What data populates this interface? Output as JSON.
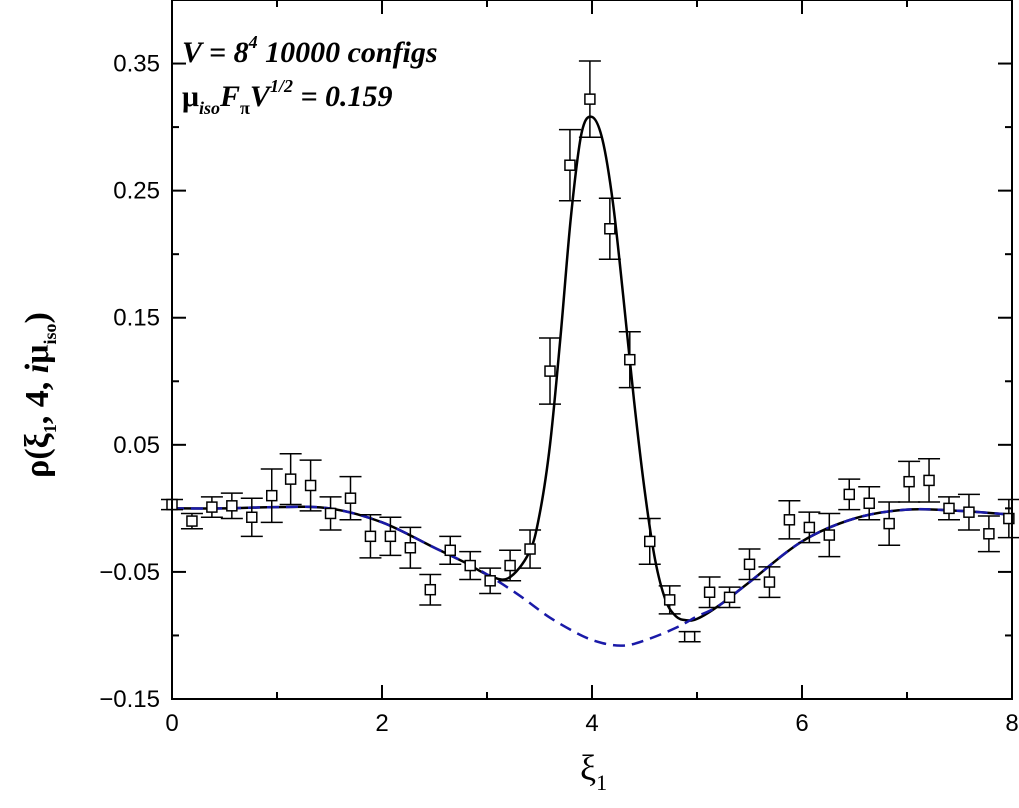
{
  "chart_data": {
    "type": "scatter",
    "xlim": [
      0,
      8
    ],
    "ylim": [
      -0.15,
      0.4
    ],
    "xticks": [
      0,
      2,
      4,
      6,
      8
    ],
    "xtick_labels": [
      "0",
      "2",
      "4",
      "6",
      "8"
    ],
    "yticks": [
      -0.15,
      -0.05,
      0.05,
      0.15,
      0.25,
      0.35
    ],
    "ytick_labels": [
      "−0.15",
      "−0.05",
      "0.05",
      "0.15",
      "0.25",
      "0.35"
    ],
    "grid": false,
    "xlabel": {
      "main": "ξ",
      "sub": "1"
    },
    "ylabel": {
      "prefix": "ρ(ξ",
      "sub1": "1",
      "middle": ", 4, ",
      "ital": "i",
      "mu": "μ",
      "sub2": "iso",
      "suffix": ")"
    },
    "annotations": {
      "line1": {
        "pre": "V = 8",
        "sup": "4",
        "post": "  10000 configs"
      },
      "line2": {
        "mu": "μ",
        "sub_iso": "iso",
        "F": "F",
        "sub_pi": "π",
        "V": "V",
        "sup": "1/2",
        "post": " = 0.159"
      }
    },
    "colors": {
      "points": "#000000",
      "solid_curve": "#000000",
      "dashed_curve": "#1a1aa8"
    },
    "series": [
      {
        "style": "points-with-error-bars",
        "points": [
          {
            "x": 0.0,
            "y": 0.003,
            "err": 0.004
          },
          {
            "x": 0.19,
            "y": -0.01,
            "err": 0.006
          },
          {
            "x": 0.38,
            "y": 0.001,
            "err": 0.008
          },
          {
            "x": 0.57,
            "y": 0.002,
            "err": 0.01
          },
          {
            "x": 0.76,
            "y": -0.007,
            "err": 0.015
          },
          {
            "x": 0.95,
            "y": 0.01,
            "err": 0.021
          },
          {
            "x": 1.13,
            "y": 0.023,
            "err": 0.02
          },
          {
            "x": 1.32,
            "y": 0.018,
            "err": 0.02
          },
          {
            "x": 1.51,
            "y": -0.004,
            "err": 0.013
          },
          {
            "x": 1.7,
            "y": 0.008,
            "err": 0.017
          },
          {
            "x": 1.89,
            "y": -0.022,
            "err": 0.017
          },
          {
            "x": 2.08,
            "y": -0.022,
            "err": 0.015
          },
          {
            "x": 2.27,
            "y": -0.031,
            "err": 0.016
          },
          {
            "x": 2.46,
            "y": -0.064,
            "err": 0.012
          },
          {
            "x": 2.65,
            "y": -0.033,
            "err": 0.011
          },
          {
            "x": 2.84,
            "y": -0.045,
            "err": 0.011
          },
          {
            "x": 3.03,
            "y": -0.057,
            "err": 0.01
          },
          {
            "x": 3.22,
            "y": -0.045,
            "err": 0.012
          },
          {
            "x": 3.41,
            "y": -0.032,
            "err": 0.015
          },
          {
            "x": 3.6,
            "y": 0.108,
            "err": 0.026
          },
          {
            "x": 3.79,
            "y": 0.27,
            "err": 0.028
          },
          {
            "x": 3.98,
            "y": 0.322,
            "err": 0.03
          },
          {
            "x": 4.17,
            "y": 0.22,
            "err": 0.024
          },
          {
            "x": 4.36,
            "y": 0.117,
            "err": 0.022
          },
          {
            "x": 4.55,
            "y": -0.026,
            "err": 0.018
          },
          {
            "x": 4.74,
            "y": -0.072,
            "err": 0.011
          },
          {
            "x": 4.93,
            "y": -0.101,
            "err": 0.004
          },
          {
            "x": 5.12,
            "y": -0.066,
            "err": 0.012
          },
          {
            "x": 5.31,
            "y": -0.07,
            "err": 0.008
          },
          {
            "x": 5.5,
            "y": -0.044,
            "err": 0.012
          },
          {
            "x": 5.69,
            "y": -0.058,
            "err": 0.012
          },
          {
            "x": 5.88,
            "y": -0.009,
            "err": 0.015
          },
          {
            "x": 6.07,
            "y": -0.015,
            "err": 0.012
          },
          {
            "x": 6.26,
            "y": -0.021,
            "err": 0.017
          },
          {
            "x": 6.45,
            "y": 0.011,
            "err": 0.012
          },
          {
            "x": 6.64,
            "y": 0.004,
            "err": 0.013
          },
          {
            "x": 6.83,
            "y": -0.012,
            "err": 0.017
          },
          {
            "x": 7.02,
            "y": 0.021,
            "err": 0.016
          },
          {
            "x": 7.21,
            "y": 0.022,
            "err": 0.017
          },
          {
            "x": 7.4,
            "y": 0.0,
            "err": 0.009
          },
          {
            "x": 7.59,
            "y": -0.003,
            "err": 0.014
          },
          {
            "x": 7.78,
            "y": -0.02,
            "err": 0.014
          },
          {
            "x": 7.97,
            "y": -0.008,
            "err": 0.015
          }
        ]
      },
      {
        "style": "solid-curve",
        "x": [
          0,
          0.5,
          1.0,
          1.5,
          2.0,
          2.5,
          2.8,
          3.0,
          3.2,
          3.4,
          3.5,
          3.6,
          3.7,
          3.8,
          3.9,
          4.0,
          4.1,
          4.2,
          4.3,
          4.4,
          4.5,
          4.6,
          4.7,
          4.8,
          4.9,
          5.0,
          5.2,
          5.5,
          6.0,
          6.5,
          7.0,
          7.5,
          8.0
        ],
        "y": [
          0.0,
          0.0,
          0.001,
          0.0,
          -0.011,
          -0.031,
          -0.043,
          -0.052,
          -0.055,
          -0.035,
          -0.005,
          0.05,
          0.135,
          0.23,
          0.295,
          0.308,
          0.29,
          0.24,
          0.165,
          0.085,
          0.015,
          -0.04,
          -0.072,
          -0.085,
          -0.088,
          -0.087,
          -0.077,
          -0.058,
          -0.026,
          -0.008,
          -0.001,
          -0.002,
          -0.005
        ]
      },
      {
        "style": "dashed-curve",
        "x": [
          0,
          0.5,
          1.0,
          1.5,
          2.0,
          2.5,
          2.8,
          3.0,
          3.3,
          3.6,
          3.9,
          4.1,
          4.3,
          4.5,
          4.8,
          5.0,
          5.2,
          5.5,
          6.0,
          6.5,
          7.0,
          7.5,
          8.0
        ],
        "y": [
          0.0,
          0.0,
          0.001,
          0.0,
          -0.011,
          -0.031,
          -0.043,
          -0.052,
          -0.068,
          -0.086,
          -0.1,
          -0.106,
          -0.108,
          -0.104,
          -0.094,
          -0.085,
          -0.077,
          -0.058,
          -0.026,
          -0.008,
          -0.001,
          -0.002,
          -0.005
        ]
      }
    ]
  }
}
